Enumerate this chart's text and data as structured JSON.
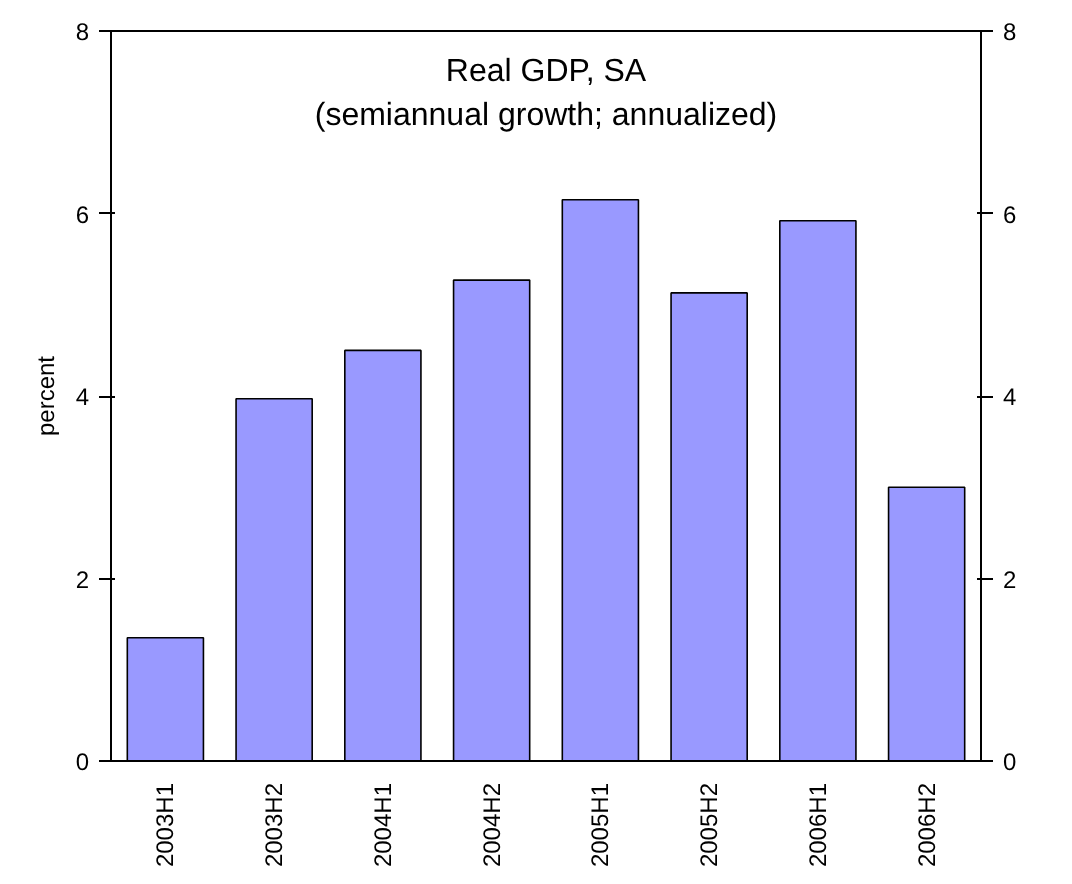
{
  "chart_data": {
    "type": "bar",
    "title": "Real GDP, SA",
    "subtitle": "(semiannual growth; annualized)",
    "ylabel": "percent",
    "categories": [
      "2003H1",
      "2003H2",
      "2004H1",
      "2004H2",
      "2005H1",
      "2005H2",
      "2006H1",
      "2006H2"
    ],
    "values": [
      1.35,
      3.97,
      4.5,
      5.27,
      6.15,
      5.13,
      5.92,
      3.0
    ],
    "color": "#9999ff",
    "ylim": [
      0,
      8
    ],
    "yticks": [
      0,
      2,
      4,
      6,
      8
    ],
    "y2lim": [
      0,
      8
    ],
    "y2ticks": [
      0,
      2,
      4,
      6,
      8
    ],
    "grid": false
  }
}
